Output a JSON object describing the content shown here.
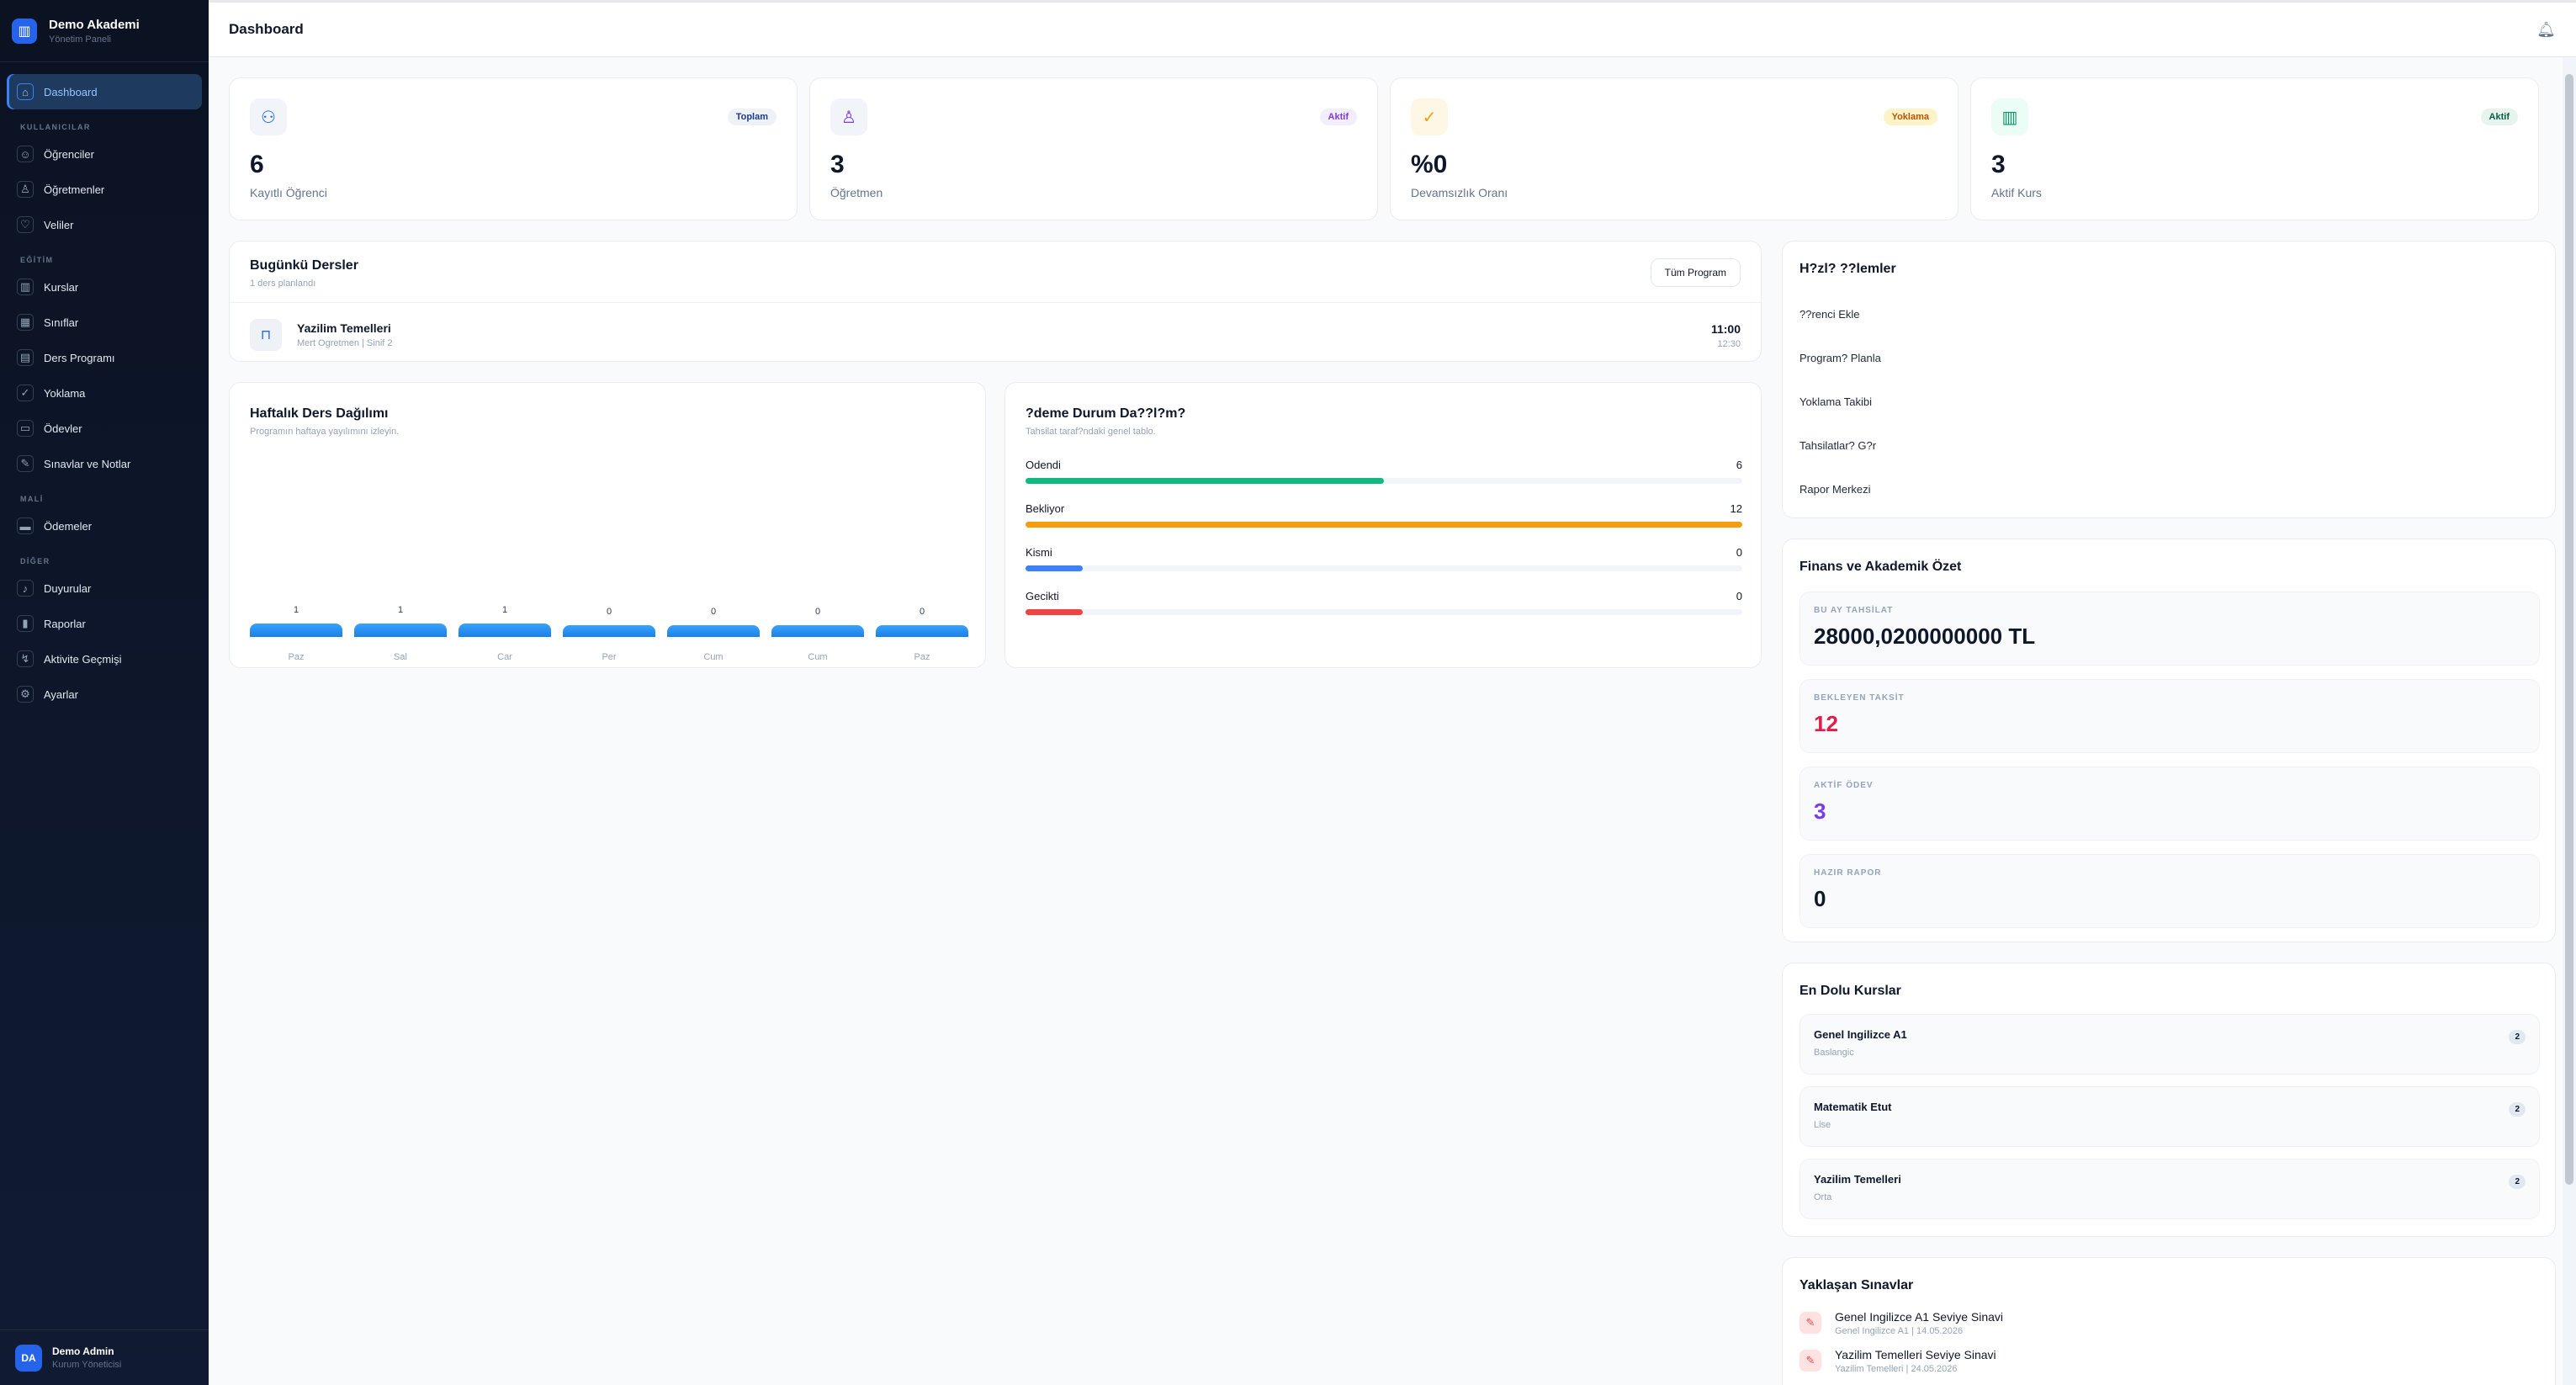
{
  "sidebar": {
    "brand_title": "Demo Akademi",
    "brand_sub": "Yönetim Paneli",
    "items": {
      "dashboard": "Dashboard",
      "students": "Öğrenciler",
      "teachers": "Öğretmenler",
      "parents": "Veliler",
      "courses": "Kurslar",
      "classes": "Sınıflar",
      "schedule": "Ders Programı",
      "attendance": "Yoklama",
      "homework": "Ödevler",
      "exams": "Sınavlar ve Notlar",
      "payments": "Ödemeler",
      "announcements": "Duyurular",
      "reports": "Raporlar",
      "activity": "Aktivite Geçmişi",
      "settings": "Ayarlar"
    },
    "sections": {
      "users": "KULLANICILAR",
      "education": "EĞİTİM",
      "finance": "MALİ",
      "other": "DİĞER"
    },
    "user": {
      "initials": "DA",
      "name": "Demo Admin",
      "role": "Kurum Yöneticisi"
    }
  },
  "header": {
    "title": "Dashboard"
  },
  "stats": [
    {
      "value": "6",
      "label": "Kayıtlı Öğrenci",
      "badge": "Toplam",
      "icon": "users-icon",
      "color": "#2563eb"
    },
    {
      "value": "3",
      "label": "Öğretmen",
      "badge": "Aktif",
      "icon": "teacher-icon",
      "color": "#7c3aed"
    },
    {
      "value": "%0",
      "label": "Devamsızlık Oranı",
      "badge": "Yoklama",
      "icon": "check-circle-icon",
      "color": "#f59e0b"
    },
    {
      "value": "3",
      "label": "Aktif Kurs",
      "badge": "Aktif",
      "icon": "book-icon",
      "color": "#059669"
    }
  ],
  "today": {
    "title": "Bugünkü Dersler",
    "subtitle": "1 ders planlandı",
    "button": "Tüm Program",
    "lesson": {
      "name": "Yazilim Temelleri",
      "meta": "Mert Ogretmen | Sinif 2",
      "start": "11:00",
      "end": "12:30"
    }
  },
  "weekly": {
    "title": "Haftalık Ders Dağılımı",
    "subtitle": "Programın haftaya yayılımını izleyin."
  },
  "chart_data": {
    "type": "bar",
    "categories": [
      "Paz",
      "Sal",
      "Car",
      "Per",
      "Cum",
      "Cum",
      "Paz"
    ],
    "values": [
      1,
      1,
      1,
      0,
      0,
      0,
      0
    ]
  },
  "payments": {
    "title": "?deme Durum Da??l?m?",
    "subtitle": "Tahsilat taraf?ndaki genel tablo.",
    "rows": [
      {
        "label": "Odendi",
        "value": 6,
        "fraction": 0.5,
        "color": "#10b981"
      },
      {
        "label": "Bekliyor",
        "value": 12,
        "fraction": 1.0,
        "color": "#f59e0b"
      },
      {
        "label": "Kismi",
        "value": 0,
        "fraction": 0.08,
        "color": "#3b82f6"
      },
      {
        "label": "Gecikti",
        "value": 0,
        "fraction": 0.08,
        "color": "#ef4444"
      }
    ]
  },
  "quick": {
    "title": "H?zl? ??lemler",
    "items": [
      "??renci Ekle",
      "Program? Planla",
      "Yoklama Takibi",
      "Tahsilatlar? G?r",
      "Rapor Merkezi"
    ]
  },
  "summary": {
    "title": "Finans ve Akademik Özet",
    "items": [
      {
        "label": "BU AY TAHSİLAT",
        "value": "28000,0200000000 TL",
        "color": "#0f172a"
      },
      {
        "label": "BEKLEYEN TAKSİT",
        "value": "12",
        "color": "#e11d48"
      },
      {
        "label": "AKTİF ÖDEV",
        "value": "3",
        "color": "#7c3aed"
      },
      {
        "label": "HAZIR RAPOR",
        "value": "0",
        "color": "#0f172a"
      }
    ]
  },
  "top_courses": {
    "title": "En Dolu Kurslar",
    "items": [
      {
        "name": "Genel Ingilizce A1",
        "level": "Baslangic",
        "count": "2"
      },
      {
        "name": "Matematik Etut",
        "level": "Lise",
        "count": "2"
      },
      {
        "name": "Yazilim Temelleri",
        "level": "Orta",
        "count": "2"
      }
    ]
  },
  "exams": {
    "title": "Yaklaşan Sınavlar",
    "items": [
      {
        "name": "Genel Ingilizce A1 Seviye Sinavi",
        "meta": "Genel Ingilizce A1 | 14.05.2026"
      },
      {
        "name": "Yazilim Temelleri Seviye Sinavi",
        "meta": "Yazilim Temelleri | 24.05.2026"
      }
    ]
  }
}
